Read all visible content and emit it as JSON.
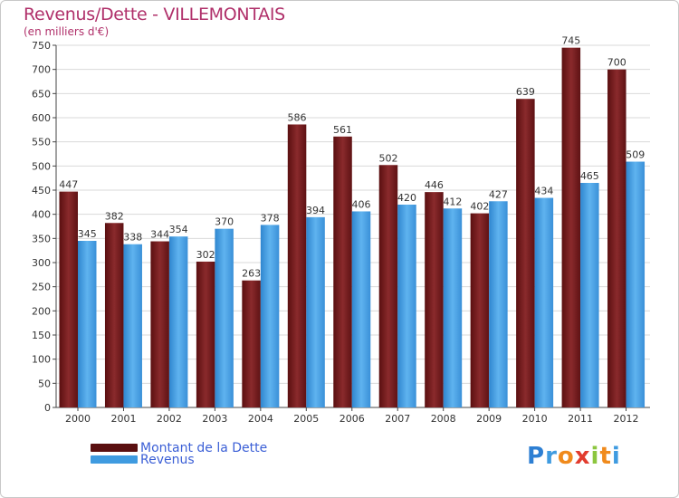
{
  "title": "Revenus/Dette - VILLEMONTAIS",
  "subtitle": "(en milliers d'€)",
  "legend": {
    "items": [
      {
        "label": "Montant de la Dette",
        "color": "#6e1414"
      },
      {
        "label": "Revenus",
        "color": "#3f9be0"
      }
    ]
  },
  "logo": {
    "letters": [
      "P",
      "r",
      "o",
      "x",
      "i",
      "t",
      "i"
    ],
    "colors": [
      "#2d7fd3",
      "#3f9be0",
      "#f08a1c",
      "#e23c2e",
      "#8cc63f",
      "#f08a1c",
      "#3f9be0"
    ]
  },
  "chart_data": {
    "type": "bar",
    "title": "Revenus/Dette - VILLEMONTAIS",
    "ylabel": "(en milliers d'€)",
    "xlabel": "",
    "ylim": [
      0,
      750
    ],
    "yticks": [
      0,
      50,
      100,
      150,
      200,
      250,
      300,
      350,
      400,
      450,
      500,
      550,
      600,
      650,
      700,
      750
    ],
    "grid": true,
    "legend_position": "bottom-left",
    "categories": [
      "2000",
      "2001",
      "2002",
      "2003",
      "2004",
      "2005",
      "2006",
      "2007",
      "2008",
      "2009",
      "2010",
      "2011",
      "2012"
    ],
    "series": [
      {
        "name": "Montant de la Dette",
        "color": "#7a1e22",
        "values": [
          447,
          382,
          344,
          302,
          263,
          586,
          561,
          502,
          446,
          402,
          639,
          745,
          700
        ]
      },
      {
        "name": "Revenus",
        "color": "#4aa3e6",
        "values": [
          345,
          338,
          354,
          370,
          378,
          394,
          406,
          420,
          412,
          427,
          434,
          465,
          509
        ]
      }
    ]
  }
}
